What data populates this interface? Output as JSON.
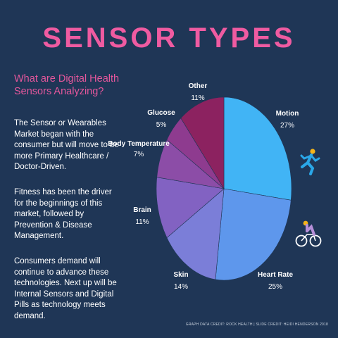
{
  "title": "SENSOR TYPES",
  "question": "What are Digital Health Sensors Analyzing?",
  "paragraphs": [
    "The Sensor or Wearables Market began with the consumer but will move to be more Primary Healthcare / Doctor-Driven.",
    "Fitness has been the driver for the beginnings of this market, followed by Prevention & Disease Management.",
    "Consumers demand will continue to advance these technologies. Next up will be Internal Sensors and Digital Pills as technology meets demand."
  ],
  "credit": "GRAPH DATA CREDIT: ROCK HEALTH  |  SLIDE CREDIT: HEIDI HENDERSON 2018",
  "icons": [
    "running-person-icon",
    "cyclist-icon"
  ],
  "chart_data": {
    "type": "pie",
    "slices": [
      {
        "label": "Motion",
        "value": 27,
        "pct": "27%",
        "color": "#41b4f5"
      },
      {
        "label": "Heart Rate",
        "value": 25,
        "pct": "25%",
        "color": "#5e97ec"
      },
      {
        "label": "Skin",
        "value": 14,
        "pct": "14%",
        "color": "#7b7ed8"
      },
      {
        "label": "Brain",
        "value": 11,
        "pct": "11%",
        "color": "#8262c2"
      },
      {
        "label": "Body Temperature",
        "value": 7,
        "pct": "7%",
        "color": "#8c4da7"
      },
      {
        "label": "Glucose",
        "value": 5,
        "pct": "5%",
        "color": "#8e3b8f"
      },
      {
        "label": "Other",
        "value": 11,
        "pct": "11%",
        "color": "#8c2260"
      }
    ]
  }
}
